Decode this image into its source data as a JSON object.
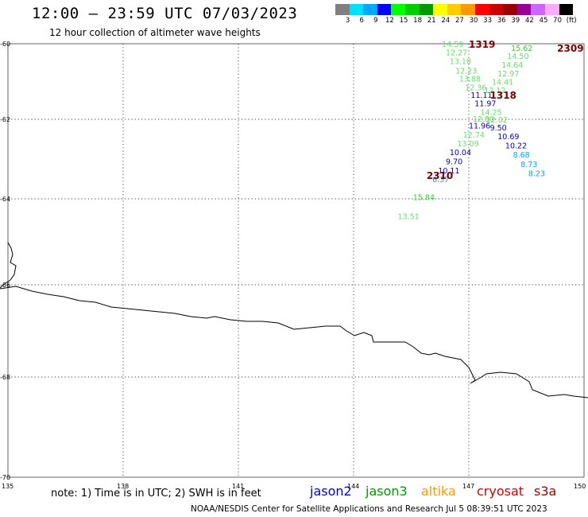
{
  "header": {
    "title": "12:00 – 23:59 UTC 07/03/2023",
    "subtitle": "12 hour collection of altimeter wave heights"
  },
  "colorbar": {
    "colors": [
      "#808080",
      "#00e0ff",
      "#00a8ff",
      "#0000ff",
      "#00ff00",
      "#00cc00",
      "#009900",
      "#ffff00",
      "#ffcc00",
      "#ff9900",
      "#ff0000",
      "#cc0000",
      "#990000",
      "#990099",
      "#cc66ff",
      "#ffaaff",
      "#000000"
    ],
    "labels": [
      "3",
      "6",
      "9",
      "12",
      "15",
      "18",
      "21",
      "24",
      "27",
      "30",
      "33",
      "36",
      "39",
      "42",
      "45",
      "70",
      "(ft)"
    ]
  },
  "map": {
    "lat_ticks": [
      "-60",
      "-62",
      "-64",
      "-66",
      "-68",
      "-70"
    ],
    "lon_ticks": [
      "135",
      "138",
      "141",
      "144",
      "147",
      "150"
    ]
  },
  "tracks": {
    "times": [
      {
        "text": "1319",
        "lon": 147.0,
        "lat": -60.0,
        "color": "#7a0000"
      },
      {
        "text": "2309",
        "lon": 149.3,
        "lat": -60.1,
        "color": "#7a0000"
      },
      {
        "text": "1318",
        "lon": 147.55,
        "lat": -61.35,
        "color": "#7a0000"
      },
      {
        "text": "2310",
        "lon": 145.9,
        "lat": -63.4,
        "color": "#7a0000"
      }
    ],
    "points": [
      {
        "text": "14.59",
        "lon": 146.3,
        "lat": -60.0,
        "color": "#66e066"
      },
      {
        "text": "12.27",
        "lon": 146.4,
        "lat": -60.22,
        "color": "#66e066"
      },
      {
        "text": "13.10",
        "lon": 146.5,
        "lat": -60.45,
        "color": "#66e066"
      },
      {
        "text": "12.23",
        "lon": 146.65,
        "lat": -60.7,
        "color": "#66e066"
      },
      {
        "text": "13.88",
        "lon": 146.75,
        "lat": -60.92,
        "color": "#66e066"
      },
      {
        "text": "12.36",
        "lon": 146.9,
        "lat": -61.15,
        "color": "#66e066"
      },
      {
        "text": "11.11",
        "lon": 147.05,
        "lat": -61.35,
        "color": "#0000cc"
      },
      {
        "text": "11.97",
        "lon": 147.15,
        "lat": -61.57,
        "color": "#0000cc"
      },
      {
        "text": "14.25",
        "lon": 147.3,
        "lat": -61.8,
        "color": "#66e066"
      },
      {
        "text": "12.80",
        "lon": 147.1,
        "lat": -61.98,
        "color": "#66e066"
      },
      {
        "text": "11.96",
        "lon": 147.0,
        "lat": -62.15,
        "color": "#0000cc"
      },
      {
        "text": "12.74",
        "lon": 146.85,
        "lat": -62.38,
        "color": "#66e066"
      },
      {
        "text": "13.09",
        "lon": 146.7,
        "lat": -62.6,
        "color": "#66e066"
      },
      {
        "text": "10.04",
        "lon": 146.5,
        "lat": -62.82,
        "color": "#0000cc"
      },
      {
        "text": "9.70",
        "lon": 146.4,
        "lat": -63.05,
        "color": "#0000cc"
      },
      {
        "text": "10.11",
        "lon": 146.2,
        "lat": -63.28,
        "color": "#0000cc"
      },
      {
        "text": "6.37",
        "lon": 146.05,
        "lat": -63.5,
        "color": "#00a8ff"
      },
      {
        "text": "15.84",
        "lon": 145.55,
        "lat": -63.95,
        "color": "#33cc33"
      },
      {
        "text": "13.51",
        "lon": 145.15,
        "lat": -64.4,
        "color": "#66e066"
      },
      {
        "text": "15.62",
        "lon": 148.1,
        "lat": -60.1,
        "color": "#33cc33"
      },
      {
        "text": "14.50",
        "lon": 148.0,
        "lat": -60.32,
        "color": "#66e066"
      },
      {
        "text": "14.64",
        "lon": 147.85,
        "lat": -60.55,
        "color": "#66e066"
      },
      {
        "text": "12.97",
        "lon": 147.75,
        "lat": -60.78,
        "color": "#66e066"
      },
      {
        "text": "14.41",
        "lon": 147.6,
        "lat": -61.0,
        "color": "#66e066"
      },
      {
        "text": "12.12",
        "lon": 147.4,
        "lat": -61.22,
        "color": "#66e066"
      },
      {
        "text": "12.02",
        "lon": 147.45,
        "lat": -62.0,
        "color": "#66e066"
      },
      {
        "text": "9.50",
        "lon": 147.55,
        "lat": -62.2,
        "color": "#0000cc"
      },
      {
        "text": "10.69",
        "lon": 147.75,
        "lat": -62.42,
        "color": "#0000cc"
      },
      {
        "text": "10.22",
        "lon": 147.95,
        "lat": -62.65,
        "color": "#0000cc"
      },
      {
        "text": "8.68",
        "lon": 148.15,
        "lat": -62.88,
        "color": "#00a8ff"
      },
      {
        "text": "8.73",
        "lon": 148.35,
        "lat": -63.12,
        "color": "#00a8ff"
      },
      {
        "text": "8.23",
        "lon": 148.55,
        "lat": -63.35,
        "color": "#00a8ff"
      }
    ]
  },
  "footer": {
    "note": "note:  1) Time is in UTC;  2) SWH is in feet",
    "satellites": [
      {
        "name": "jason2",
        "color": "#0000dd"
      },
      {
        "name": "jason3",
        "color": "#009900"
      },
      {
        "name": "altika",
        "color": "#ff9900"
      },
      {
        "name": "cryosat",
        "color": "#cc0000"
      },
      {
        "name": "s3a",
        "color": "#990000"
      }
    ],
    "credit": "NOAA/NESDIS Center for Satellite Applications and Research    Jul  5 08:39:51 UTC 2023"
  }
}
